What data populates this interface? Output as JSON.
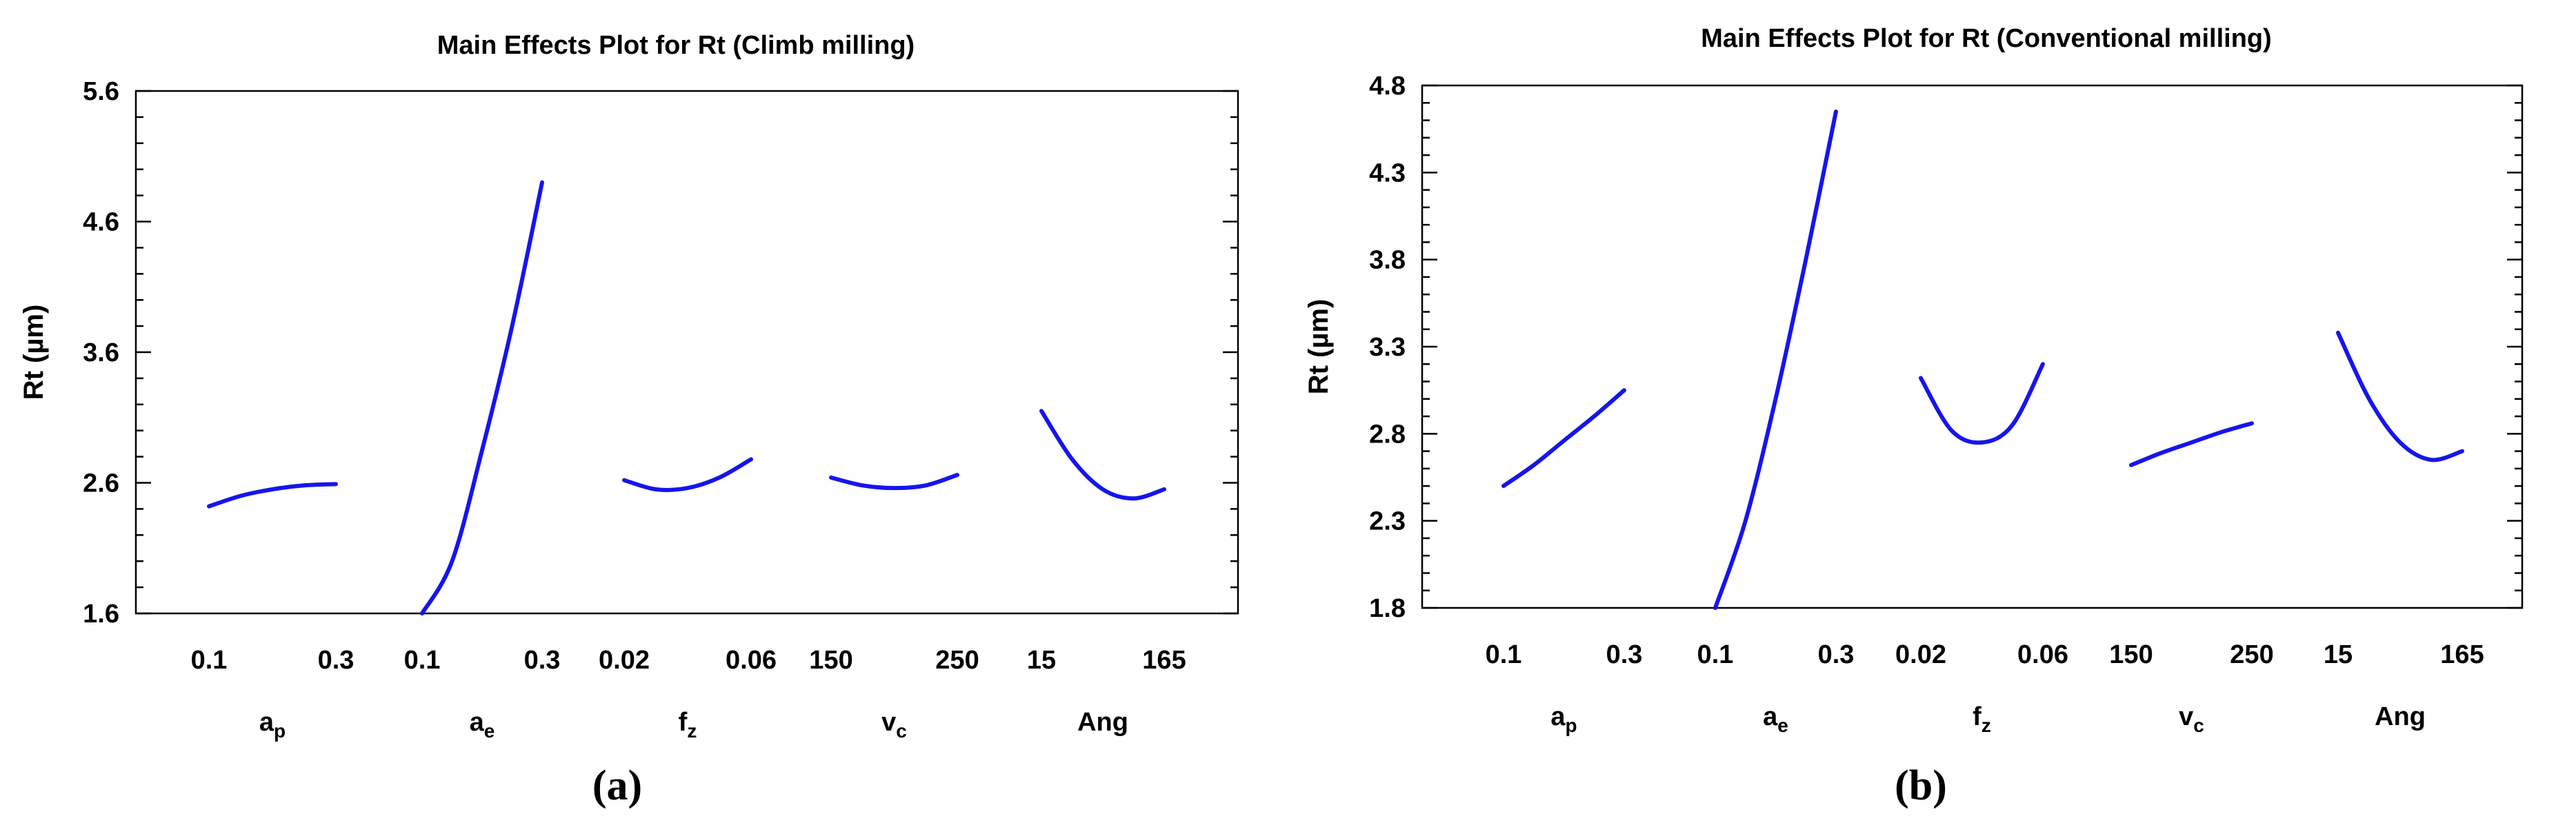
{
  "chart_data": [
    {
      "type": "line",
      "title": "Main Effects Plot for Rt (Climb milling)",
      "ylabel": "Rt  (µm)",
      "ylim": [
        1.6,
        5.6
      ],
      "yticks": [
        "1.6",
        "2.6",
        "3.6",
        "4.6",
        "5.6"
      ],
      "grid": false,
      "panel_label": "(a)",
      "factors": [
        {
          "name": "a",
          "sub": "p",
          "low_label": "0.1",
          "high_label": "0.3",
          "values": [
            2.42,
            2.5,
            2.55,
            2.58,
            2.59
          ]
        },
        {
          "name": "a",
          "sub": "e",
          "low_label": "0.1",
          "high_label": "0.3",
          "values": [
            1.6,
            2.0,
            2.85,
            3.8,
            4.9
          ]
        },
        {
          "name": "f",
          "sub": "z",
          "low_label": "0.02",
          "high_label": "0.06",
          "values": [
            2.62,
            2.55,
            2.56,
            2.64,
            2.78
          ]
        },
        {
          "name": "v",
          "sub": "c",
          "low_label": "150",
          "high_label": "250",
          "values": [
            2.64,
            2.58,
            2.56,
            2.58,
            2.66
          ]
        },
        {
          "name": "Ang",
          "sub": "",
          "low_label": "15",
          "high_label": "165",
          "values": [
            3.15,
            2.78,
            2.55,
            2.48,
            2.55
          ]
        }
      ]
    },
    {
      "type": "line",
      "title": "Main Effects Plot for Rt (Conventional milling)",
      "ylabel": "Rt  (µm)",
      "ylim": [
        1.8,
        4.8
      ],
      "yticks": [
        "1.8",
        "2.3",
        "2.8",
        "3.3",
        "3.8",
        "4.3",
        "4.8"
      ],
      "grid": false,
      "panel_label": "(b)",
      "factors": [
        {
          "name": "a",
          "sub": "p",
          "low_label": "0.1",
          "high_label": "0.3",
          "values": [
            2.5,
            2.62,
            2.76,
            2.9,
            3.05
          ]
        },
        {
          "name": "a",
          "sub": "e",
          "low_label": "0.1",
          "high_label": "0.3",
          "values": [
            1.8,
            2.3,
            3.0,
            3.8,
            4.65
          ]
        },
        {
          "name": "f",
          "sub": "z",
          "low_label": "0.02",
          "high_label": "0.06",
          "values": [
            3.12,
            2.82,
            2.75,
            2.85,
            3.2
          ]
        },
        {
          "name": "v",
          "sub": "c",
          "low_label": "150",
          "high_label": "250",
          "values": [
            2.62,
            2.69,
            2.75,
            2.81,
            2.86
          ]
        },
        {
          "name": "Ang",
          "sub": "",
          "low_label": "15",
          "high_label": "165",
          "values": [
            3.38,
            3.0,
            2.75,
            2.65,
            2.7
          ]
        }
      ]
    }
  ]
}
